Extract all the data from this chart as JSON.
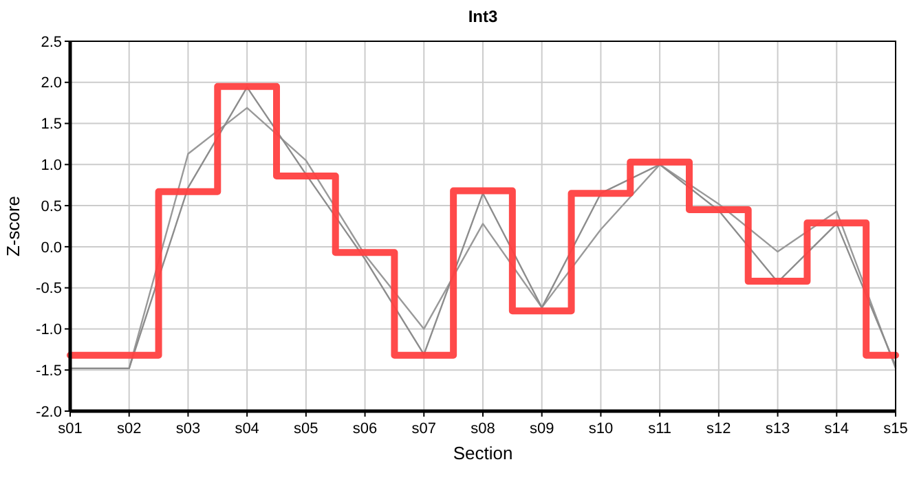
{
  "chart_data": {
    "type": "line",
    "title": "Int3",
    "xlabel": "Section",
    "ylabel": "Z-score",
    "categories": [
      "s01",
      "s02",
      "s03",
      "s04",
      "s05",
      "s06",
      "s07",
      "s08",
      "s09",
      "s10",
      "s11",
      "s12",
      "s13",
      "s14",
      "s15"
    ],
    "series": [
      {
        "color": "#999999",
        "values": [
          -1.48,
          -1.48,
          1.13,
          1.69,
          1.05,
          -0.1,
          -1.0,
          0.28,
          -0.74,
          0.21,
          1.0,
          0.52,
          -0.06,
          0.43,
          -1.48
        ]
      },
      {
        "color": "#8c8c8c",
        "values": [
          -1.48,
          -1.48,
          0.72,
          1.94,
          0.88,
          -0.15,
          -1.31,
          0.65,
          -0.74,
          0.65,
          1.0,
          0.44,
          -0.43,
          0.28,
          -1.45
        ]
      },
      {
        "type": "step",
        "color": "#ff4040",
        "values": [
          -1.32,
          -1.32,
          0.67,
          1.95,
          0.86,
          -0.07,
          -1.32,
          0.68,
          -0.78,
          0.65,
          1.03,
          0.45,
          -0.42,
          0.29,
          -1.32
        ]
      }
    ],
    "ylim": [
      -2.0,
      2.5
    ],
    "yticks": [
      {
        "value": -2,
        "label": "-2.0"
      },
      -1.5,
      {
        "value": -1,
        "label": "-1.0"
      },
      -0.5,
      {
        "value": 0,
        "label": "0.0"
      },
      0.5,
      {
        "value": 1,
        "label": "1.0"
      },
      1.5,
      {
        "value": 2,
        "label": "2.0"
      },
      2.5
    ],
    "grid": true
  }
}
